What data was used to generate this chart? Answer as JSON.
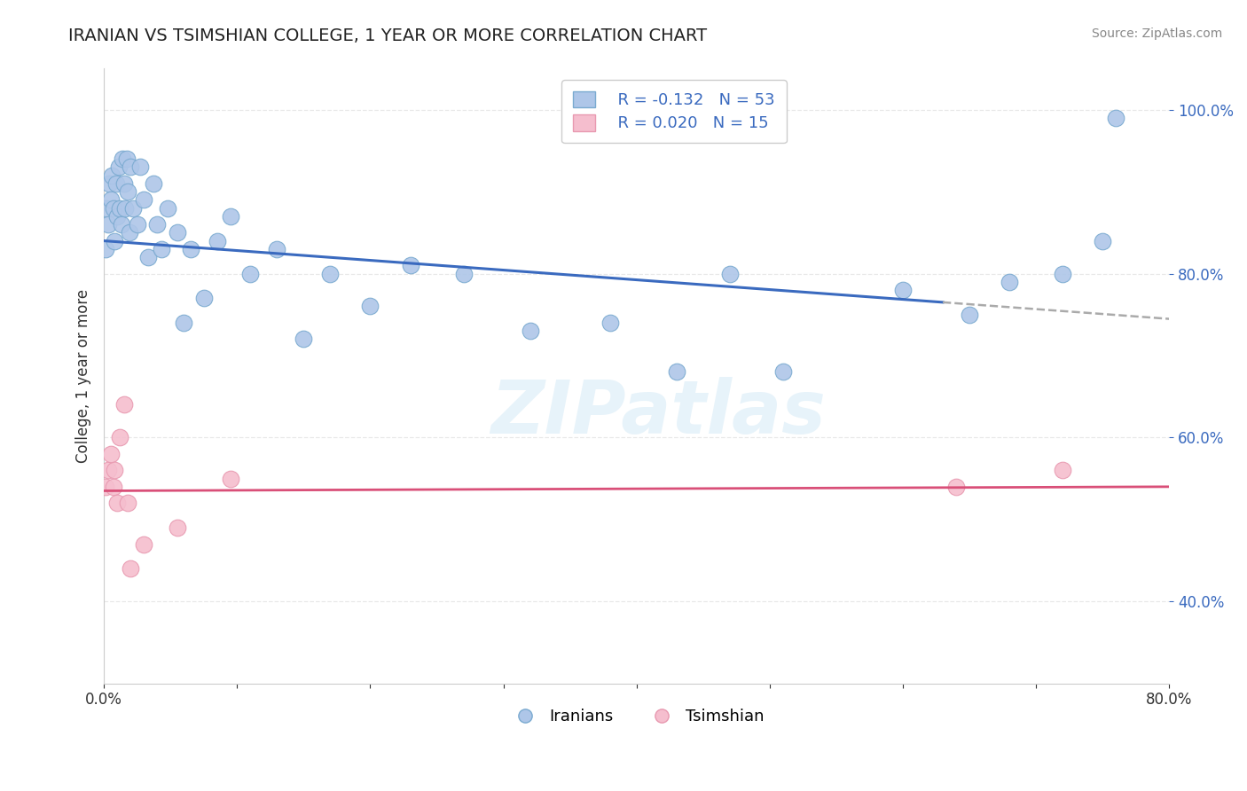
{
  "title": "IRANIAN VS TSIMSHIAN COLLEGE, 1 YEAR OR MORE CORRELATION CHART",
  "source": "Source: ZipAtlas.com",
  "ylabel": "College, 1 year or more",
  "xlim": [
    0.0,
    0.8
  ],
  "ylim": [
    0.3,
    1.05
  ],
  "xticks": [
    0.0,
    0.1,
    0.2,
    0.3,
    0.4,
    0.5,
    0.6,
    0.7,
    0.8
  ],
  "xticklabels": [
    "0.0%",
    "",
    "",
    "",
    "",
    "",
    "",
    "",
    "80.0%"
  ],
  "yticks": [
    0.4,
    0.6,
    0.8,
    1.0
  ],
  "yticklabels": [
    "40.0%",
    "60.0%",
    "80.0%",
    "100.0%"
  ],
  "grid_color": "#e8e8e8",
  "watermark": "ZIPatlas",
  "iranians_color": "#aec6e8",
  "iranians_edge": "#7aaad0",
  "tsimshian_color": "#f5bece",
  "tsimshian_edge": "#e899b0",
  "iranians_line_color": "#3a6abf",
  "iranians_line_dash_color": "#aaaaaa",
  "tsimshian_line_color": "#d94f78",
  "legend_R1": "R = -0.132",
  "legend_N1": "N = 53",
  "legend_R2": "R = 0.020",
  "legend_N2": "N = 15",
  "iranians_x": [
    0.001,
    0.002,
    0.003,
    0.004,
    0.005,
    0.006,
    0.007,
    0.008,
    0.009,
    0.01,
    0.011,
    0.012,
    0.013,
    0.014,
    0.015,
    0.016,
    0.017,
    0.018,
    0.019,
    0.02,
    0.022,
    0.025,
    0.027,
    0.03,
    0.033,
    0.037,
    0.04,
    0.043,
    0.048,
    0.055,
    0.06,
    0.065,
    0.075,
    0.085,
    0.095,
    0.11,
    0.13,
    0.15,
    0.17,
    0.2,
    0.23,
    0.27,
    0.32,
    0.38,
    0.43,
    0.47,
    0.51,
    0.6,
    0.65,
    0.68,
    0.72,
    0.75,
    0.76
  ],
  "iranians_y": [
    0.83,
    0.88,
    0.86,
    0.91,
    0.89,
    0.92,
    0.88,
    0.84,
    0.91,
    0.87,
    0.93,
    0.88,
    0.86,
    0.94,
    0.91,
    0.88,
    0.94,
    0.9,
    0.85,
    0.93,
    0.88,
    0.86,
    0.93,
    0.89,
    0.82,
    0.91,
    0.86,
    0.83,
    0.88,
    0.85,
    0.74,
    0.83,
    0.77,
    0.84,
    0.87,
    0.8,
    0.83,
    0.72,
    0.8,
    0.76,
    0.81,
    0.8,
    0.73,
    0.74,
    0.68,
    0.8,
    0.68,
    0.78,
    0.75,
    0.79,
    0.8,
    0.84,
    0.99
  ],
  "tsimshian_x": [
    0.001,
    0.003,
    0.005,
    0.007,
    0.008,
    0.01,
    0.012,
    0.015,
    0.018,
    0.02,
    0.03,
    0.055,
    0.095,
    0.64,
    0.72
  ],
  "tsimshian_y": [
    0.54,
    0.56,
    0.58,
    0.54,
    0.56,
    0.52,
    0.6,
    0.64,
    0.52,
    0.44,
    0.47,
    0.49,
    0.55,
    0.54,
    0.56
  ],
  "iranians_trendline_x0": 0.0,
  "iranians_trendline_x1": 0.63,
  "iranians_trendline_x_dash0": 0.63,
  "iranians_trendline_x_dash1": 0.8,
  "iranians_trendline_y0": 0.84,
  "iranians_trendline_y1": 0.765,
  "tsimshian_trendline_y": 0.535
}
